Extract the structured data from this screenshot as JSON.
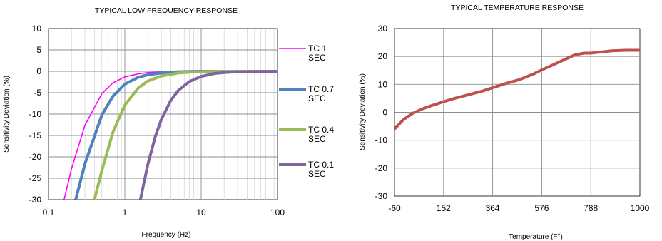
{
  "chart_data": [
    {
      "type": "line",
      "title": "TYPICAL LOW FREQUENCY RESPONSE",
      "xlabel": "Frequency (Hz)",
      "ylabel": "Sensitivity Deviation (%)",
      "x_scale": "log",
      "xlim": [
        0.1,
        100
      ],
      "ylim": [
        -30,
        10
      ],
      "x_ticks": [
        "0.1",
        "1",
        "10",
        "100"
      ],
      "y_ticks": [
        "10",
        "5",
        "0",
        "-5",
        "-10",
        "-15",
        "-20",
        "-25",
        "-30"
      ],
      "grid": true,
      "legend_position": "right",
      "series": [
        {
          "name": "TC 1 SEC",
          "legend_lines": [
            "TC 1",
            "SEC"
          ],
          "color": "#ff00ff",
          "line_weight": "thin",
          "points": [
            [
              0.16,
              -30
            ],
            [
              0.2,
              -22.8
            ],
            [
              0.3,
              -12.6
            ],
            [
              0.5,
              -5.2
            ],
            [
              0.7,
              -2.7
            ],
            [
              1,
              -1.3
            ],
            [
              1.5,
              -0.6
            ],
            [
              2,
              -0.3
            ],
            [
              4,
              -0.1
            ],
            [
              10,
              0
            ],
            [
              100,
              0
            ]
          ]
        },
        {
          "name": "TC 0.7 SEC",
          "legend_lines": [
            "TC 0.7",
            "SEC"
          ],
          "color": "#4f81bd",
          "line_weight": "thick",
          "points": [
            [
              0.227,
              -30
            ],
            [
              0.3,
              -21.6
            ],
            [
              0.5,
              -10.2
            ],
            [
              0.7,
              -5.8
            ],
            [
              1,
              -3
            ],
            [
              1.5,
              -1.4
            ],
            [
              2,
              -0.8
            ],
            [
              3,
              -0.4
            ],
            [
              5,
              -0.1
            ],
            [
              10,
              0
            ],
            [
              100,
              0
            ]
          ]
        },
        {
          "name": "TC 0.4 SEC",
          "legend_lines": [
            "TC 0.4",
            "SEC"
          ],
          "color": "#9bbb59",
          "line_weight": "thick",
          "points": [
            [
              0.4,
              -30
            ],
            [
              0.5,
              -23.2
            ],
            [
              0.7,
              -14.2
            ],
            [
              1,
              -7.9
            ],
            [
              1.5,
              -3.9
            ],
            [
              2,
              -2.3
            ],
            [
              3,
              -1.1
            ],
            [
              5,
              -0.4
            ],
            [
              8,
              -0.15
            ],
            [
              15,
              0
            ],
            [
              100,
              0
            ]
          ]
        },
        {
          "name": "TC 0.1 SEC",
          "legend_lines": [
            "TC 0.1",
            "SEC"
          ],
          "color": "#8064a2",
          "line_weight": "thick",
          "points": [
            [
              1.6,
              -30
            ],
            [
              2,
              -21.8
            ],
            [
              2.5,
              -15.3
            ],
            [
              3,
              -11.3
            ],
            [
              4,
              -6.8
            ],
            [
              5,
              -4.5
            ],
            [
              7,
              -2.4
            ],
            [
              10,
              -1.2
            ],
            [
              15,
              -0.5
            ],
            [
              20,
              -0.3
            ],
            [
              30,
              -0.1
            ],
            [
              100,
              0
            ]
          ]
        }
      ]
    },
    {
      "type": "line",
      "title": "TYPICAL TEMPERATURE RESPONSE",
      "xlabel": "Temperature (F°)",
      "ylabel": "Sensitivity Deviation (%)",
      "xlim": [
        -60,
        1000
      ],
      "ylim": [
        -30,
        30
      ],
      "x_ticks": [
        "-60",
        "152",
        "364",
        "576",
        "788",
        "1000"
      ],
      "y_ticks": [
        "30",
        "20",
        "10",
        "0",
        "-10",
        "-20",
        "-30"
      ],
      "grid": true,
      "series": [
        {
          "color": "#c0504d",
          "line_weight": "thick",
          "points": [
            [
              -60,
              -6
            ],
            [
              -20,
              -2.5
            ],
            [
              20,
              -0.3
            ],
            [
              60,
              1.2
            ],
            [
              100,
              2.4
            ],
            [
              152,
              3.8
            ],
            [
              200,
              5
            ],
            [
              260,
              6.3
            ],
            [
              320,
              7.6
            ],
            [
              364,
              8.8
            ],
            [
              420,
              10.3
            ],
            [
              480,
              11.7
            ],
            [
              540,
              13.7
            ],
            [
              576,
              15.2
            ],
            [
              620,
              16.8
            ],
            [
              680,
              19.1
            ],
            [
              720,
              20.6
            ],
            [
              760,
              21.2
            ],
            [
              788,
              21.2
            ],
            [
              820,
              21.5
            ],
            [
              880,
              22
            ],
            [
              940,
              22.2
            ],
            [
              1000,
              22.2
            ]
          ]
        }
      ]
    }
  ]
}
